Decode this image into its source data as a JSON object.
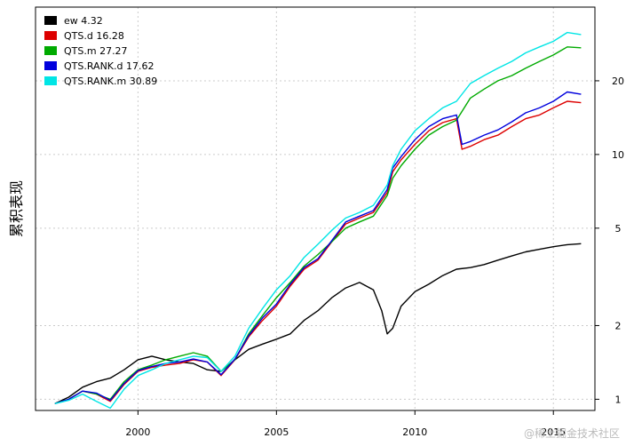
{
  "chart_data": {
    "type": "line",
    "ylabel": "累积表现",
    "y_scale": "log",
    "ylim": [
      0.9,
      40
    ],
    "xlim": [
      1996.3,
      2016.5
    ],
    "y_ticks": [
      1,
      2,
      5,
      10,
      20
    ],
    "x_ticks": [
      2000,
      2005,
      2010,
      2015
    ],
    "grid": true,
    "legend_position": "top-left",
    "series": [
      {
        "name": "ew  4.32",
        "color": "#000000",
        "points": [
          [
            1997.0,
            0.96
          ],
          [
            1997.5,
            1.02
          ],
          [
            1998.0,
            1.12
          ],
          [
            1998.5,
            1.18
          ],
          [
            1999.0,
            1.22
          ],
          [
            1999.5,
            1.32
          ],
          [
            2000.0,
            1.45
          ],
          [
            2000.5,
            1.5
          ],
          [
            2001.0,
            1.45
          ],
          [
            2001.5,
            1.42
          ],
          [
            2002.0,
            1.4
          ],
          [
            2002.5,
            1.32
          ],
          [
            2003.0,
            1.3
          ],
          [
            2003.5,
            1.45
          ],
          [
            2004.0,
            1.6
          ],
          [
            2004.5,
            1.68
          ],
          [
            2005.0,
            1.76
          ],
          [
            2005.5,
            1.85
          ],
          [
            2006.0,
            2.1
          ],
          [
            2006.5,
            2.3
          ],
          [
            2007.0,
            2.6
          ],
          [
            2007.5,
            2.85
          ],
          [
            2008.0,
            3.0
          ],
          [
            2008.5,
            2.8
          ],
          [
            2008.8,
            2.3
          ],
          [
            2009.0,
            1.85
          ],
          [
            2009.2,
            1.95
          ],
          [
            2009.5,
            2.4
          ],
          [
            2010.0,
            2.75
          ],
          [
            2010.5,
            2.95
          ],
          [
            2011.0,
            3.2
          ],
          [
            2011.5,
            3.4
          ],
          [
            2012.0,
            3.45
          ],
          [
            2012.5,
            3.55
          ],
          [
            2013.0,
            3.7
          ],
          [
            2013.5,
            3.85
          ],
          [
            2014.0,
            4.0
          ],
          [
            2014.5,
            4.1
          ],
          [
            2015.0,
            4.2
          ],
          [
            2015.5,
            4.28
          ],
          [
            2016.0,
            4.32
          ]
        ]
      },
      {
        "name": "QTS.d 16.28",
        "color": "#dd0000",
        "points": [
          [
            1997.0,
            0.96
          ],
          [
            1997.5,
            1.0
          ],
          [
            1998.0,
            1.08
          ],
          [
            1998.5,
            1.05
          ],
          [
            1999.0,
            0.98
          ],
          [
            1999.5,
            1.15
          ],
          [
            2000.0,
            1.3
          ],
          [
            2000.5,
            1.35
          ],
          [
            2001.0,
            1.38
          ],
          [
            2001.5,
            1.4
          ],
          [
            2002.0,
            1.45
          ],
          [
            2002.5,
            1.42
          ],
          [
            2003.0,
            1.25
          ],
          [
            2003.5,
            1.45
          ],
          [
            2004.0,
            1.8
          ],
          [
            2004.5,
            2.1
          ],
          [
            2005.0,
            2.4
          ],
          [
            2005.5,
            2.9
          ],
          [
            2006.0,
            3.4
          ],
          [
            2006.5,
            3.7
          ],
          [
            2007.0,
            4.4
          ],
          [
            2007.5,
            5.2
          ],
          [
            2008.0,
            5.5
          ],
          [
            2008.5,
            5.8
          ],
          [
            2009.0,
            7.0
          ],
          [
            2009.2,
            8.5
          ],
          [
            2009.5,
            9.5
          ],
          [
            2010.0,
            11.0
          ],
          [
            2010.5,
            12.5
          ],
          [
            2011.0,
            13.5
          ],
          [
            2011.5,
            14.0
          ],
          [
            2011.7,
            10.5
          ],
          [
            2012.0,
            10.8
          ],
          [
            2012.5,
            11.5
          ],
          [
            2013.0,
            12.0
          ],
          [
            2013.5,
            13.0
          ],
          [
            2014.0,
            14.0
          ],
          [
            2014.5,
            14.5
          ],
          [
            2015.0,
            15.5
          ],
          [
            2015.5,
            16.5
          ],
          [
            2016.0,
            16.28
          ]
        ]
      },
      {
        "name": "QTS.m 27.27",
        "color": "#00aa00",
        "points": [
          [
            1997.0,
            0.96
          ],
          [
            1997.5,
            1.0
          ],
          [
            1998.0,
            1.08
          ],
          [
            1998.5,
            1.05
          ],
          [
            1999.0,
            1.0
          ],
          [
            1999.5,
            1.18
          ],
          [
            2000.0,
            1.32
          ],
          [
            2000.5,
            1.38
          ],
          [
            2001.0,
            1.45
          ],
          [
            2001.5,
            1.5
          ],
          [
            2002.0,
            1.55
          ],
          [
            2002.5,
            1.5
          ],
          [
            2003.0,
            1.3
          ],
          [
            2003.5,
            1.45
          ],
          [
            2004.0,
            1.85
          ],
          [
            2004.5,
            2.2
          ],
          [
            2005.0,
            2.6
          ],
          [
            2005.5,
            3.0
          ],
          [
            2006.0,
            3.5
          ],
          [
            2006.5,
            3.9
          ],
          [
            2007.0,
            4.4
          ],
          [
            2007.5,
            5.0
          ],
          [
            2008.0,
            5.3
          ],
          [
            2008.5,
            5.6
          ],
          [
            2009.0,
            6.8
          ],
          [
            2009.2,
            8.0
          ],
          [
            2009.5,
            9.0
          ],
          [
            2010.0,
            10.5
          ],
          [
            2010.5,
            12.0
          ],
          [
            2011.0,
            13.0
          ],
          [
            2011.5,
            13.8
          ],
          [
            2012.0,
            17.0
          ],
          [
            2012.5,
            18.5
          ],
          [
            2013.0,
            20.0
          ],
          [
            2013.5,
            21.0
          ],
          [
            2014.0,
            22.5
          ],
          [
            2014.5,
            24.0
          ],
          [
            2015.0,
            25.5
          ],
          [
            2015.5,
            27.5
          ],
          [
            2016.0,
            27.27
          ]
        ]
      },
      {
        "name": "QTS.RANK.d 17.62",
        "color": "#0000dd",
        "points": [
          [
            1997.0,
            0.96
          ],
          [
            1997.5,
            1.0
          ],
          [
            1998.0,
            1.08
          ],
          [
            1998.5,
            1.06
          ],
          [
            1999.0,
            0.99
          ],
          [
            1999.5,
            1.16
          ],
          [
            2000.0,
            1.31
          ],
          [
            2000.5,
            1.36
          ],
          [
            2001.0,
            1.4
          ],
          [
            2001.5,
            1.42
          ],
          [
            2002.0,
            1.46
          ],
          [
            2002.5,
            1.42
          ],
          [
            2003.0,
            1.26
          ],
          [
            2003.5,
            1.46
          ],
          [
            2004.0,
            1.82
          ],
          [
            2004.5,
            2.15
          ],
          [
            2005.0,
            2.45
          ],
          [
            2005.5,
            2.95
          ],
          [
            2006.0,
            3.45
          ],
          [
            2006.5,
            3.75
          ],
          [
            2007.0,
            4.45
          ],
          [
            2007.5,
            5.3
          ],
          [
            2008.0,
            5.6
          ],
          [
            2008.5,
            5.9
          ],
          [
            2009.0,
            7.2
          ],
          [
            2009.2,
            8.8
          ],
          [
            2009.5,
            9.8
          ],
          [
            2010.0,
            11.5
          ],
          [
            2010.5,
            13.0
          ],
          [
            2011.0,
            14.0
          ],
          [
            2011.5,
            14.5
          ],
          [
            2011.7,
            11.0
          ],
          [
            2012.0,
            11.3
          ],
          [
            2012.5,
            12.0
          ],
          [
            2013.0,
            12.6
          ],
          [
            2013.5,
            13.6
          ],
          [
            2014.0,
            14.8
          ],
          [
            2014.5,
            15.5
          ],
          [
            2015.0,
            16.5
          ],
          [
            2015.5,
            18.0
          ],
          [
            2016.0,
            17.62
          ]
        ]
      },
      {
        "name": "QTS.RANK.m 30.89",
        "color": "#00e5e5",
        "points": [
          [
            1997.0,
            0.96
          ],
          [
            1997.5,
            0.99
          ],
          [
            1998.0,
            1.05
          ],
          [
            1998.5,
            0.98
          ],
          [
            1999.0,
            0.92
          ],
          [
            1999.5,
            1.1
          ],
          [
            2000.0,
            1.25
          ],
          [
            2000.5,
            1.32
          ],
          [
            2001.0,
            1.4
          ],
          [
            2001.5,
            1.45
          ],
          [
            2002.0,
            1.5
          ],
          [
            2002.5,
            1.48
          ],
          [
            2003.0,
            1.3
          ],
          [
            2003.5,
            1.5
          ],
          [
            2004.0,
            1.95
          ],
          [
            2004.5,
            2.35
          ],
          [
            2005.0,
            2.8
          ],
          [
            2005.5,
            3.2
          ],
          [
            2006.0,
            3.8
          ],
          [
            2006.5,
            4.3
          ],
          [
            2007.0,
            4.9
          ],
          [
            2007.5,
            5.5
          ],
          [
            2008.0,
            5.8
          ],
          [
            2008.5,
            6.2
          ],
          [
            2009.0,
            7.5
          ],
          [
            2009.2,
            9.0
          ],
          [
            2009.5,
            10.5
          ],
          [
            2010.0,
            12.5
          ],
          [
            2010.5,
            14.0
          ],
          [
            2011.0,
            15.5
          ],
          [
            2011.5,
            16.5
          ],
          [
            2012.0,
            19.5
          ],
          [
            2012.5,
            21.0
          ],
          [
            2013.0,
            22.5
          ],
          [
            2013.5,
            24.0
          ],
          [
            2014.0,
            26.0
          ],
          [
            2014.5,
            27.5
          ],
          [
            2015.0,
            29.0
          ],
          [
            2015.5,
            31.5
          ],
          [
            2016.0,
            30.89
          ]
        ]
      }
    ]
  },
  "watermark": "@稀土掘金技术社区"
}
